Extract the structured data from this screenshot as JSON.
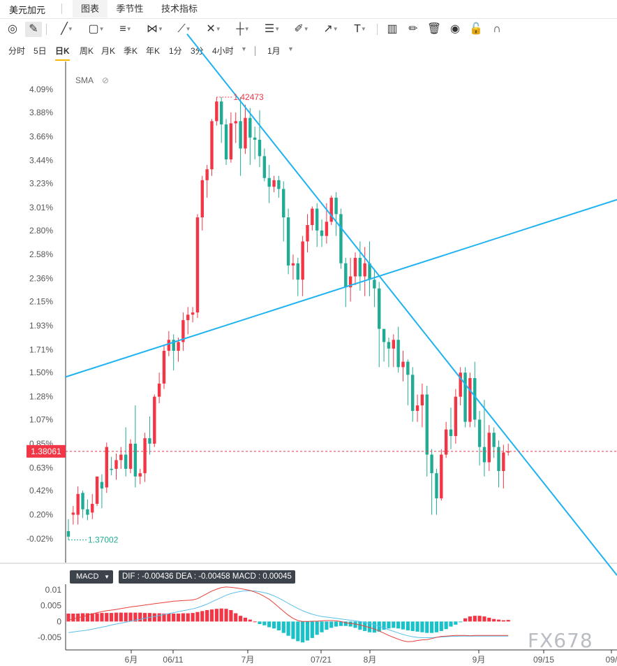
{
  "tabs": {
    "title": "美元加元",
    "items": [
      "图表",
      "季节性",
      "技术指标"
    ]
  },
  "toolbar": {
    "icons": [
      "gauge-icon",
      "pencil-icon",
      "line-icon",
      "rect-icon",
      "parallel-lines-icon",
      "pattern-icon",
      "fork-icon",
      "fib-icon",
      "bars-icon",
      "measure-icon",
      "brush-icon",
      "arrow-icon",
      "text-icon",
      "candle-icon",
      "edit-icon",
      "trash-icon",
      "eye-icon",
      "unlock-icon",
      "magnet-icon"
    ],
    "text_tool": "T"
  },
  "periods": {
    "items": [
      "分时",
      "5日",
      "日K",
      "周K",
      "月K",
      "季K",
      "年K",
      "1分",
      "3分",
      "4小时"
    ],
    "active": "日K",
    "range": "1月"
  },
  "indicator": {
    "label": "SMA"
  },
  "macd": {
    "label": "MACD",
    "values_text": "DIF : -0.00436  DEA : -0.00458  MACD : 0.00045"
  },
  "watermark": "FX678",
  "colors": {
    "up": "#f23645",
    "down": "#22ab94",
    "trendline": "#1eb3f0",
    "dif": "#e8403a",
    "dea": "#5bbfea",
    "price_tag": "#f23645"
  },
  "chart_data": {
    "type": "candlestick",
    "y_axis": {
      "ticks": [
        "4.09%",
        "3.88%",
        "3.66%",
        "3.44%",
        "3.23%",
        "3.01%",
        "2.80%",
        "2.58%",
        "2.36%",
        "2.15%",
        "1.93%",
        "1.71%",
        "1.50%",
        "1.28%",
        "1.07%",
        "0.85%",
        "0.63%",
        "0.42%",
        "0.20%",
        "-0.02%"
      ],
      "range_pct": [
        -0.02,
        4.09
      ]
    },
    "x_axis": {
      "labels": [
        "6月",
        "06/11",
        "7月",
        "07/21",
        "8月",
        "9月",
        "09/15",
        "09/"
      ]
    },
    "last_price": "1.38061",
    "high_label": "1.42473",
    "low_label": "1.37002",
    "candles_pct": [
      [
        0.05,
        0.0,
        -0.03,
        0.16
      ],
      [
        0.2,
        0.22,
        0.11,
        0.28
      ],
      [
        0.2,
        0.39,
        0.11,
        0.46
      ],
      [
        0.4,
        0.25,
        0.17,
        0.42
      ],
      [
        0.25,
        0.2,
        0.15,
        0.34
      ],
      [
        0.22,
        0.3,
        0.16,
        0.39
      ],
      [
        0.3,
        0.55,
        0.28,
        0.52
      ],
      [
        0.5,
        0.44,
        0.26,
        0.57
      ],
      [
        0.45,
        0.82,
        0.4,
        0.86
      ],
      [
        0.62,
        0.61,
        0.56,
        0.73
      ],
      [
        0.62,
        0.7,
        0.52,
        0.76
      ],
      [
        0.7,
        0.75,
        0.62,
        0.82
      ],
      [
        0.75,
        0.62,
        0.55,
        1.0
      ],
      [
        0.62,
        0.85,
        0.58,
        0.89
      ],
      [
        0.85,
        0.55,
        0.45,
        1.2
      ],
      [
        0.55,
        0.58,
        0.48,
        0.62
      ],
      [
        0.58,
        0.9,
        0.5,
        0.95
      ],
      [
        0.9,
        0.85,
        0.75,
        1.1
      ],
      [
        0.85,
        1.28,
        0.82,
        1.3
      ],
      [
        1.28,
        1.4,
        1.22,
        1.5
      ],
      [
        1.4,
        1.7,
        1.35,
        1.75
      ],
      [
        1.7,
        1.8,
        1.65,
        1.88
      ],
      [
        1.8,
        1.7,
        1.52,
        1.85
      ],
      [
        1.7,
        1.78,
        1.6,
        1.82
      ],
      [
        1.78,
        1.98,
        1.7,
        2.05
      ],
      [
        1.98,
        2.03,
        1.85,
        2.1
      ],
      [
        2.03,
        2.05,
        1.96,
        2.1
      ],
      [
        2.05,
        2.92,
        2.0,
        2.95
      ],
      [
        2.92,
        3.26,
        2.8,
        3.3
      ],
      [
        3.26,
        3.36,
        3.1,
        3.4
      ],
      [
        3.36,
        3.8,
        3.3,
        3.82
      ],
      [
        3.8,
        3.98,
        3.76,
        4.02
      ],
      [
        3.98,
        3.77,
        3.6,
        4.02
      ],
      [
        3.77,
        3.45,
        3.4,
        3.82
      ],
      [
        3.45,
        3.78,
        3.42,
        3.88
      ],
      [
        3.78,
        3.8,
        3.6,
        3.88
      ],
      [
        3.8,
        3.55,
        3.3,
        4.02
      ],
      [
        3.55,
        3.83,
        3.5,
        3.95
      ],
      [
        3.83,
        3.65,
        3.4,
        3.92
      ],
      [
        3.65,
        3.63,
        3.45,
        3.75
      ],
      [
        3.63,
        3.48,
        3.38,
        3.9
      ],
      [
        3.48,
        3.28,
        3.25,
        3.55
      ],
      [
        3.28,
        3.2,
        3.05,
        3.4
      ],
      [
        3.2,
        3.26,
        3.15,
        3.3
      ],
      [
        3.26,
        3.18,
        3.1,
        3.3
      ],
      [
        3.18,
        2.92,
        2.7,
        3.25
      ],
      [
        2.92,
        2.48,
        2.4,
        3.0
      ],
      [
        2.48,
        2.5,
        2.35,
        2.58
      ],
      [
        2.5,
        2.35,
        2.2,
        2.55
      ],
      [
        2.35,
        2.7,
        2.2,
        2.75
      ],
      [
        2.7,
        2.85,
        2.6,
        2.95
      ],
      [
        2.85,
        3.0,
        2.8,
        3.02
      ],
      [
        3.0,
        2.8,
        2.65,
        3.05
      ],
      [
        2.8,
        2.75,
        2.65,
        2.9
      ],
      [
        2.75,
        2.88,
        2.68,
        3.05
      ],
      [
        2.88,
        3.1,
        2.85,
        3.12
      ],
      [
        3.1,
        2.95,
        2.75,
        3.15
      ],
      [
        2.95,
        2.5,
        2.45,
        3.0
      ],
      [
        2.5,
        2.28,
        2.1,
        2.55
      ],
      [
        2.28,
        2.38,
        2.15,
        2.55
      ],
      [
        2.38,
        2.55,
        2.3,
        2.6
      ],
      [
        2.55,
        2.38,
        2.25,
        2.7
      ],
      [
        2.38,
        2.5,
        2.2,
        2.65
      ],
      [
        2.5,
        2.35,
        2.2,
        2.7
      ],
      [
        2.35,
        2.27,
        2.1,
        2.45
      ],
      [
        2.27,
        1.9,
        1.55,
        2.33
      ],
      [
        1.9,
        1.78,
        1.6,
        1.9
      ],
      [
        1.78,
        1.72,
        1.55,
        1.82
      ],
      [
        1.72,
        1.8,
        1.55,
        1.85
      ],
      [
        1.8,
        1.55,
        1.5,
        1.92
      ],
      [
        1.55,
        1.6,
        1.42,
        1.7
      ],
      [
        1.6,
        1.48,
        1.2,
        1.62
      ],
      [
        1.48,
        1.15,
        1.05,
        1.55
      ],
      [
        1.15,
        1.2,
        1.05,
        1.3
      ],
      [
        1.2,
        1.3,
        1.0,
        1.4
      ],
      [
        1.3,
        0.75,
        0.55,
        1.38
      ],
      [
        0.75,
        0.58,
        0.2,
        0.8
      ],
      [
        0.58,
        0.35,
        0.2,
        0.62
      ],
      [
        0.35,
        0.75,
        0.33,
        0.8
      ],
      [
        0.75,
        0.98,
        0.72,
        1.05
      ],
      [
        0.98,
        0.92,
        0.8,
        1.18
      ],
      [
        0.92,
        1.28,
        0.85,
        1.35
      ],
      [
        1.28,
        1.5,
        1.2,
        1.55
      ],
      [
        1.5,
        1.05,
        1.0,
        1.55
      ],
      [
        1.05,
        1.45,
        1.0,
        1.5
      ],
      [
        1.45,
        1.07,
        1.0,
        1.6
      ],
      [
        1.07,
        0.82,
        0.65,
        1.15
      ],
      [
        0.82,
        0.68,
        0.55,
        1.25
      ],
      [
        0.68,
        0.95,
        0.6,
        1.02
      ],
      [
        0.95,
        0.82,
        0.72,
        1.0
      ],
      [
        0.82,
        0.6,
        0.45,
        0.88
      ],
      [
        0.6,
        0.77,
        0.44,
        0.84
      ],
      [
        0.77,
        0.78,
        0.74,
        0.85
      ]
    ],
    "macd": {
      "ticks": [
        "0.01",
        "0.005",
        "0",
        "-0.005"
      ],
      "range": [
        -0.0075,
        0.0115
      ],
      "hist": [
        0.0025,
        0.0025,
        0.0025,
        0.0026,
        0.0026,
        0.0026,
        0.0026,
        0.0027,
        0.0027,
        0.0027,
        0.0028,
        0.0028,
        0.0028,
        0.0028,
        0.0028,
        0.0028,
        0.0027,
        0.0027,
        0.0026,
        0.0026,
        0.0025,
        0.0025,
        0.0025,
        0.0025,
        0.0026,
        0.0026,
        0.0027,
        0.003,
        0.0033,
        0.0036,
        0.0038,
        0.004,
        0.0041,
        0.004,
        0.0036,
        0.0026,
        0.0018,
        0.0012,
        0.0006,
        0.0,
        -0.0008,
        -0.0012,
        -0.0018,
        -0.0022,
        -0.0028,
        -0.0036,
        -0.0045,
        -0.0055,
        -0.0062,
        -0.0066,
        -0.006,
        -0.0052,
        -0.0042,
        -0.0034,
        -0.0026,
        -0.002,
        -0.0016,
        -0.0014,
        -0.0014,
        -0.0016,
        -0.002,
        -0.0026,
        -0.003,
        -0.0034,
        -0.0035,
        -0.0032,
        -0.0026,
        -0.0022,
        -0.002,
        -0.0022,
        -0.0025,
        -0.0028,
        -0.003,
        -0.0032,
        -0.0034,
        -0.0036,
        -0.0036,
        -0.0034,
        -0.003,
        -0.0024,
        -0.0016,
        -0.001,
        -0.0002,
        0.001,
        0.0016,
        0.0018,
        0.0018,
        0.0016,
        0.0012,
        0.0008,
        0.0006,
        0.0004,
        0.0005
      ],
      "dif": [
        0.0005,
        0.0008,
        0.0012,
        0.0015,
        0.002,
        0.0024,
        0.0028,
        0.0031,
        0.0034,
        0.0036,
        0.0038,
        0.0041,
        0.0043,
        0.0046,
        0.0048,
        0.005,
        0.0052,
        0.0054,
        0.0056,
        0.0058,
        0.006,
        0.0062,
        0.0064,
        0.0065,
        0.0066,
        0.0067,
        0.0068,
        0.0072,
        0.008,
        0.0088,
        0.0096,
        0.0102,
        0.0107,
        0.0109,
        0.0108,
        0.0106,
        0.0104,
        0.0101,
        0.0098,
        0.0093,
        0.0087,
        0.0079,
        0.007,
        0.0058,
        0.0045,
        0.0032,
        0.002,
        0.001,
        0.0003,
        0.0,
        0.0,
        0.0001,
        0.0001,
        0.0002,
        0.0003,
        0.0003,
        0.0002,
        0.0,
        -0.0004,
        -0.0006,
        -0.0008,
        -0.0011,
        -0.0015,
        -0.0019,
        -0.0024,
        -0.003,
        -0.0037,
        -0.0044,
        -0.005,
        -0.0056,
        -0.0061,
        -0.0064,
        -0.0063,
        -0.006,
        -0.0058,
        -0.0057,
        -0.0054,
        -0.005,
        -0.0047,
        -0.0046,
        -0.0045,
        -0.0044,
        -0.0044,
        -0.0044,
        -0.0045,
        -0.0044,
        -0.0044,
        -0.0044,
        -0.0044,
        -0.0044,
        -0.0044,
        -0.0044,
        -0.0044
      ],
      "dea": [
        -0.0035,
        -0.0033,
        -0.0031,
        -0.0029,
        -0.0027,
        -0.0024,
        -0.0021,
        -0.0018,
        -0.0015,
        -0.0011,
        -0.0008,
        -0.0005,
        -0.0002,
        0.0001,
        0.0004,
        0.0007,
        0.001,
        0.0013,
        0.0016,
        0.0019,
        0.0022,
        0.0025,
        0.0028,
        0.0031,
        0.0034,
        0.0037,
        0.004,
        0.0044,
        0.0049,
        0.0055,
        0.0062,
        0.0069,
        0.0076,
        0.0083,
        0.0088,
        0.0092,
        0.0095,
        0.0097,
        0.0097,
        0.0096,
        0.0094,
        0.0091,
        0.0087,
        0.0081,
        0.0074,
        0.0066,
        0.0057,
        0.0049,
        0.0041,
        0.0034,
        0.0028,
        0.0023,
        0.0019,
        0.0016,
        0.0014,
        0.0012,
        0.001,
        0.0008,
        0.0006,
        0.0004,
        0.0002,
        0.0,
        -0.0003,
        -0.0006,
        -0.001,
        -0.0015,
        -0.002,
        -0.0026,
        -0.0031,
        -0.0036,
        -0.0041,
        -0.0045,
        -0.0048,
        -0.005,
        -0.0051,
        -0.0051,
        -0.0051,
        -0.005,
        -0.0049,
        -0.0048,
        -0.0047,
        -0.0047,
        -0.0046,
        -0.0046,
        -0.0046,
        -0.0046,
        -0.0046,
        -0.0046,
        -0.0046,
        -0.0046,
        -0.0046,
        -0.0046,
        -0.0046
      ]
    }
  }
}
